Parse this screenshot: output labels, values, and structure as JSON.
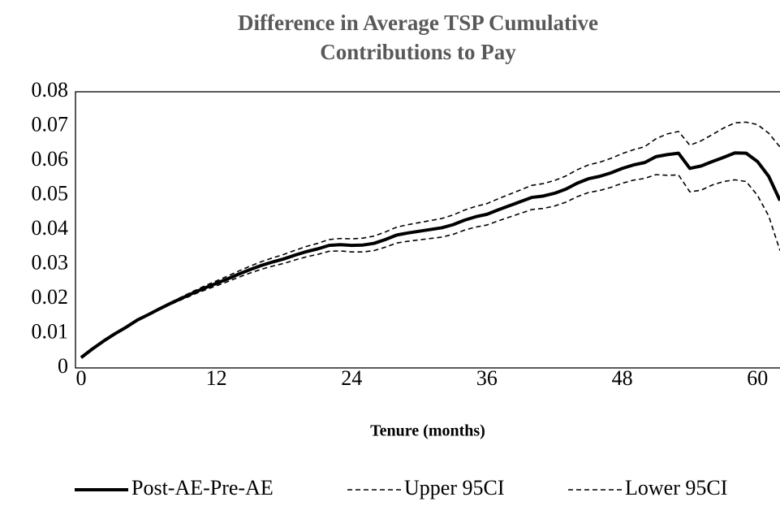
{
  "chart_data": {
    "type": "line",
    "title": "Difference in Average TSP Cumulative Contributions to Pay",
    "x_label": "Tenure (months)",
    "x": [
      0,
      1,
      2,
      3,
      4,
      5,
      6,
      7,
      8,
      9,
      10,
      11,
      12,
      13,
      14,
      15,
      16,
      17,
      18,
      19,
      20,
      21,
      22,
      23,
      24,
      25,
      26,
      27,
      28,
      29,
      30,
      31,
      32,
      33,
      34,
      35,
      36,
      37,
      38,
      39,
      40,
      41,
      42,
      43,
      44,
      45,
      46,
      47,
      48,
      49,
      50,
      51,
      52,
      53,
      54,
      55,
      56,
      57,
      58,
      59,
      60,
      61,
      62
    ],
    "series": [
      {
        "name": "Post-AE-Pre-AE",
        "color": "#000000",
        "dash": false,
        "values": [
          0.003,
          0.0055,
          0.0078,
          0.0099,
          0.0118,
          0.0139,
          0.0155,
          0.0172,
          0.0188,
          0.0203,
          0.0218,
          0.0232,
          0.0245,
          0.0258,
          0.0272,
          0.0285,
          0.0297,
          0.0307,
          0.0316,
          0.0327,
          0.0337,
          0.0345,
          0.0355,
          0.0357,
          0.0355,
          0.0356,
          0.0361,
          0.0372,
          0.0385,
          0.0391,
          0.0396,
          0.0401,
          0.0406,
          0.0415,
          0.0428,
          0.0438,
          0.0445,
          0.0458,
          0.047,
          0.0482,
          0.0494,
          0.0498,
          0.0506,
          0.0518,
          0.0535,
          0.0548,
          0.0555,
          0.0565,
          0.0578,
          0.0588,
          0.0595,
          0.0612,
          0.0618,
          0.0622,
          0.0578,
          0.0585,
          0.0598,
          0.061,
          0.0623,
          0.0622,
          0.0598,
          0.0555,
          0.0485
        ]
      },
      {
        "name": "Upper 95CI",
        "color": "#000000",
        "dash": true,
        "values": [
          0.003,
          0.0055,
          0.0078,
          0.0099,
          0.0118,
          0.0139,
          0.0155,
          0.0174,
          0.0191,
          0.0207,
          0.0223,
          0.0238,
          0.0252,
          0.0266,
          0.0281,
          0.0295,
          0.0308,
          0.0319,
          0.0329,
          0.0341,
          0.0352,
          0.0361,
          0.0372,
          0.0375,
          0.0374,
          0.0376,
          0.0382,
          0.0394,
          0.0408,
          0.0415,
          0.0421,
          0.0427,
          0.0433,
          0.0443,
          0.0457,
          0.0468,
          0.0476,
          0.049,
          0.0503,
          0.0516,
          0.0529,
          0.0534,
          0.0543,
          0.0556,
          0.0574,
          0.0588,
          0.0596,
          0.0607,
          0.0621,
          0.0632,
          0.0641,
          0.0664,
          0.0678,
          0.0685,
          0.0645,
          0.0658,
          0.0676,
          0.0695,
          0.071,
          0.0712,
          0.0705,
          0.068,
          0.064
        ]
      },
      {
        "name": "Lower 95CI",
        "color": "#000000",
        "dash": true,
        "values": [
          0.003,
          0.0055,
          0.0078,
          0.0099,
          0.0118,
          0.0139,
          0.0155,
          0.017,
          0.0185,
          0.0199,
          0.0213,
          0.0226,
          0.0238,
          0.025,
          0.0263,
          0.0275,
          0.0286,
          0.0295,
          0.0303,
          0.0313,
          0.0322,
          0.0329,
          0.0338,
          0.0339,
          0.0336,
          0.0336,
          0.034,
          0.035,
          0.0362,
          0.0367,
          0.0371,
          0.0375,
          0.0379,
          0.0387,
          0.0399,
          0.0408,
          0.0414,
          0.0426,
          0.0437,
          0.0448,
          0.0459,
          0.0462,
          0.0469,
          0.048,
          0.0496,
          0.0508,
          0.0514,
          0.0523,
          0.0535,
          0.0544,
          0.0549,
          0.056,
          0.0558,
          0.0559,
          0.051,
          0.0515,
          0.053,
          0.054,
          0.0545,
          0.054,
          0.05,
          0.044,
          0.034
        ]
      }
    ],
    "xlim": [
      -0.5,
      62
    ],
    "xticks": [
      0,
      12,
      24,
      36,
      48,
      60
    ],
    "ylim": [
      0,
      0.08
    ],
    "yticks": [
      0,
      0.01,
      0.02,
      0.03,
      0.04,
      0.05,
      0.06,
      0.07,
      0.08
    ],
    "legend": "bottom",
    "grid": false
  }
}
